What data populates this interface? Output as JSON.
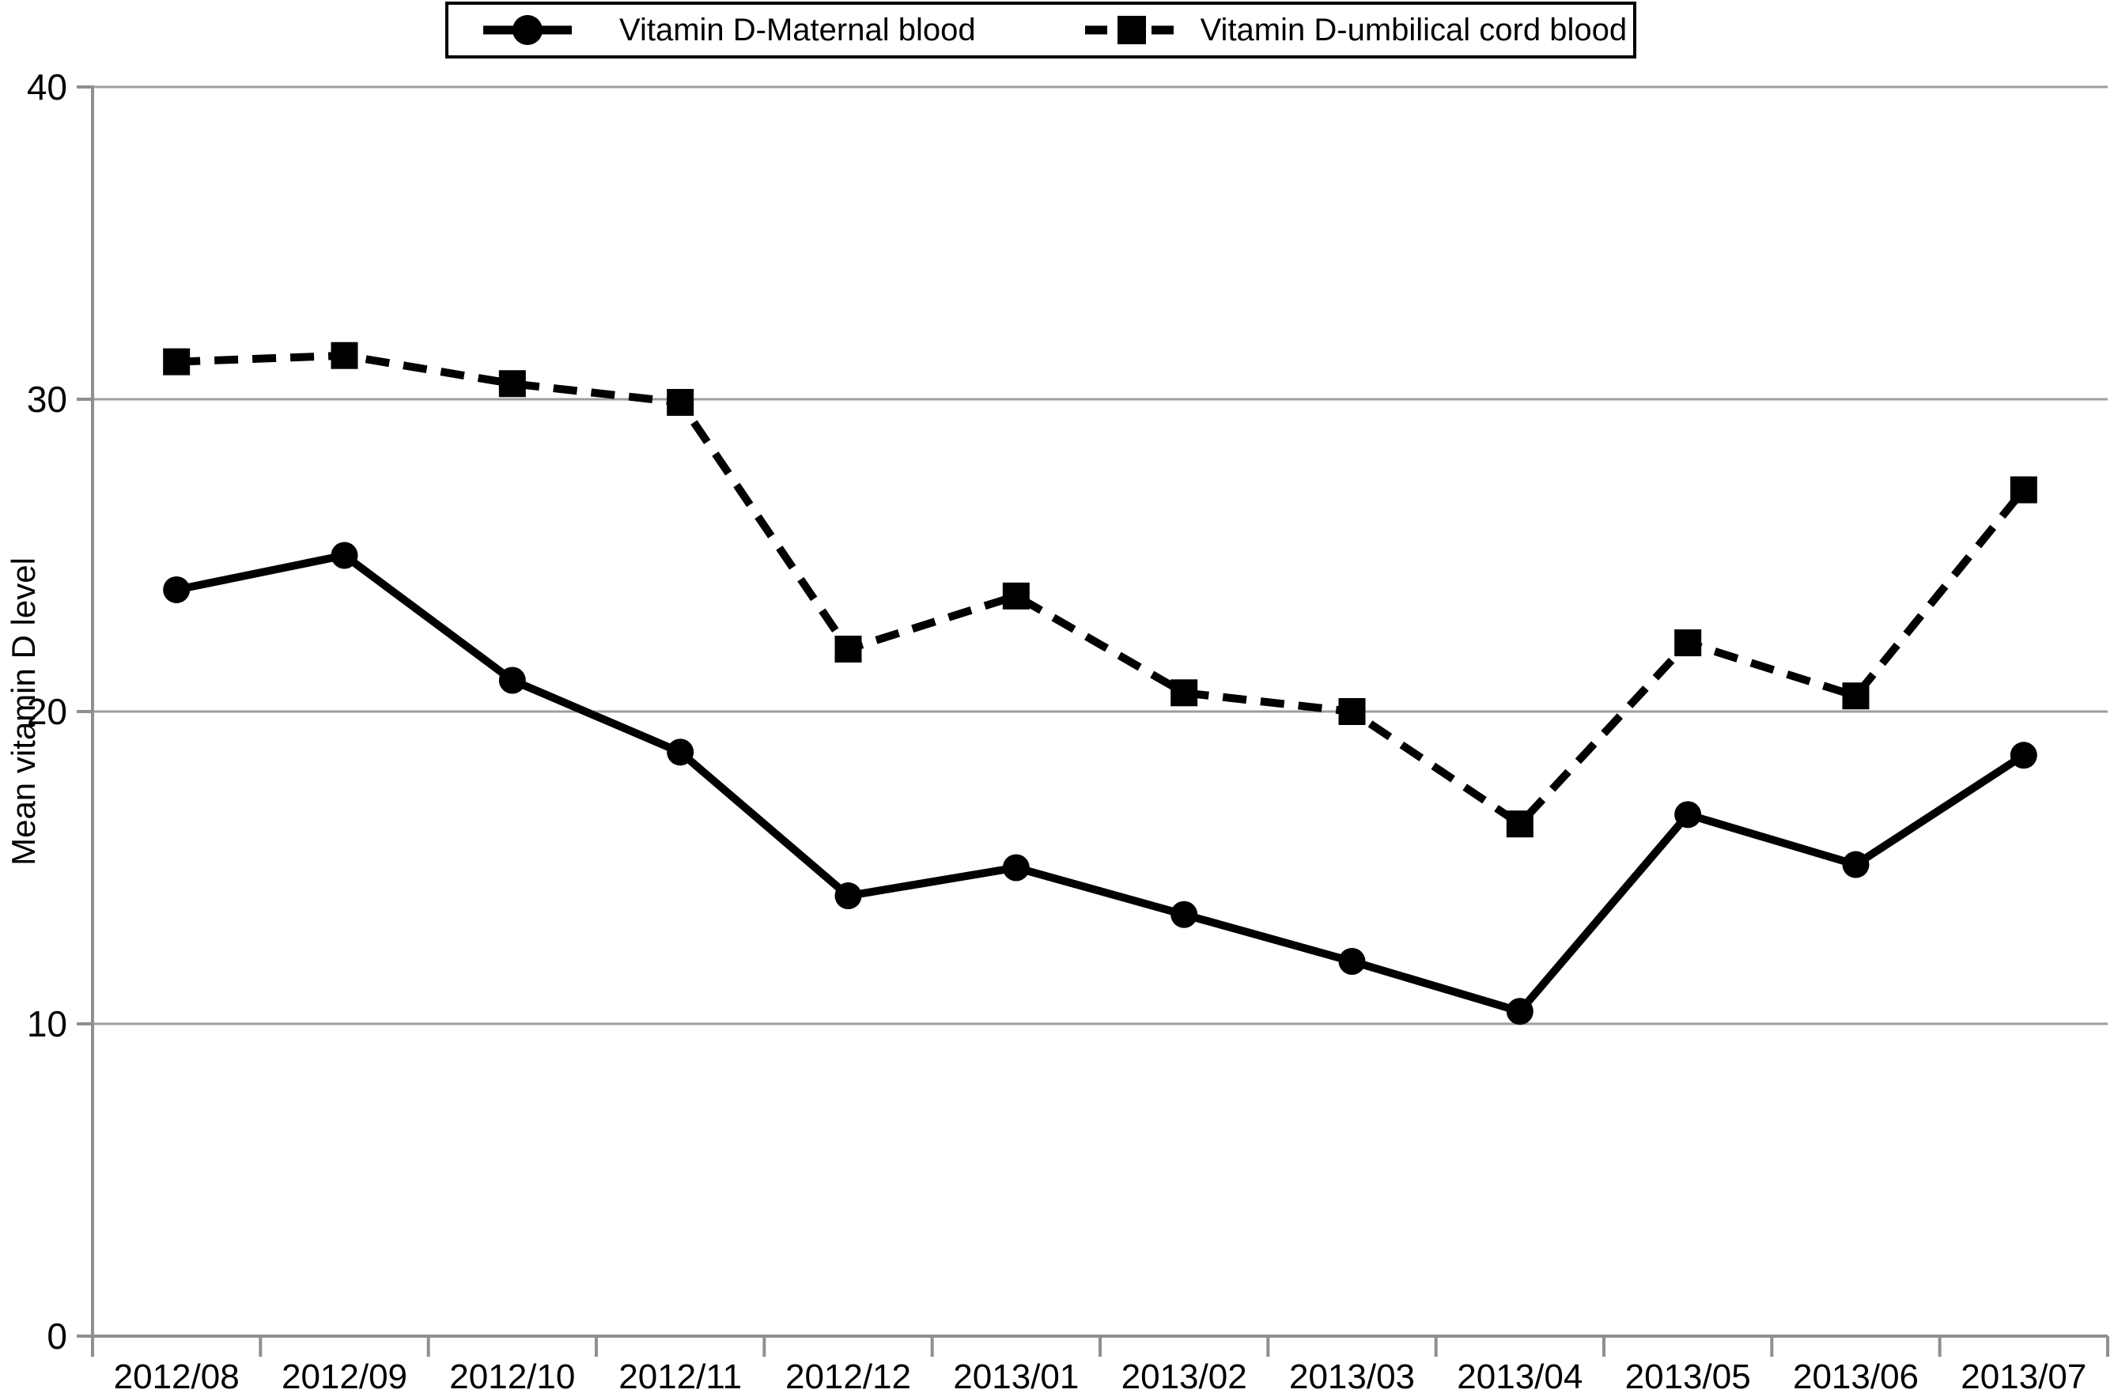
{
  "chart_data": {
    "type": "line",
    "title": "",
    "xlabel": "",
    "ylabel": "Mean vitamin D level",
    "ylim": [
      0,
      40
    ],
    "yticks": [
      0,
      10,
      20,
      30,
      40
    ],
    "grid": true,
    "legend_position": "top",
    "categories": [
      "2012/08",
      "2012/09",
      "2012/10",
      "2012/11",
      "2012/12",
      "2013/01",
      "2013/02",
      "2013/03",
      "2013/04",
      "2013/05",
      "2013/06",
      "2013/07"
    ],
    "series": [
      {
        "name": "Vitamin D-Maternal blood",
        "marker": "circle",
        "line_style": "solid",
        "values": [
          23.9,
          25.0,
          21.0,
          18.7,
          14.1,
          15.0,
          13.5,
          12.0,
          10.4,
          16.7,
          15.1,
          18.6
        ]
      },
      {
        "name": "Vitamin D-umbilical cord blood",
        "marker": "square",
        "line_style": "dashed",
        "values": [
          31.2,
          31.4,
          30.5,
          29.9,
          22.0,
          23.7,
          20.6,
          20.0,
          16.4,
          22.2,
          20.5,
          27.1
        ]
      }
    ]
  },
  "colors": {
    "series_stroke": "#000000",
    "gridline": "#9e9e9e",
    "axis": "#8f8f8f",
    "text": "#000000",
    "legend_border": "#000000",
    "background": "#ffffff"
  }
}
